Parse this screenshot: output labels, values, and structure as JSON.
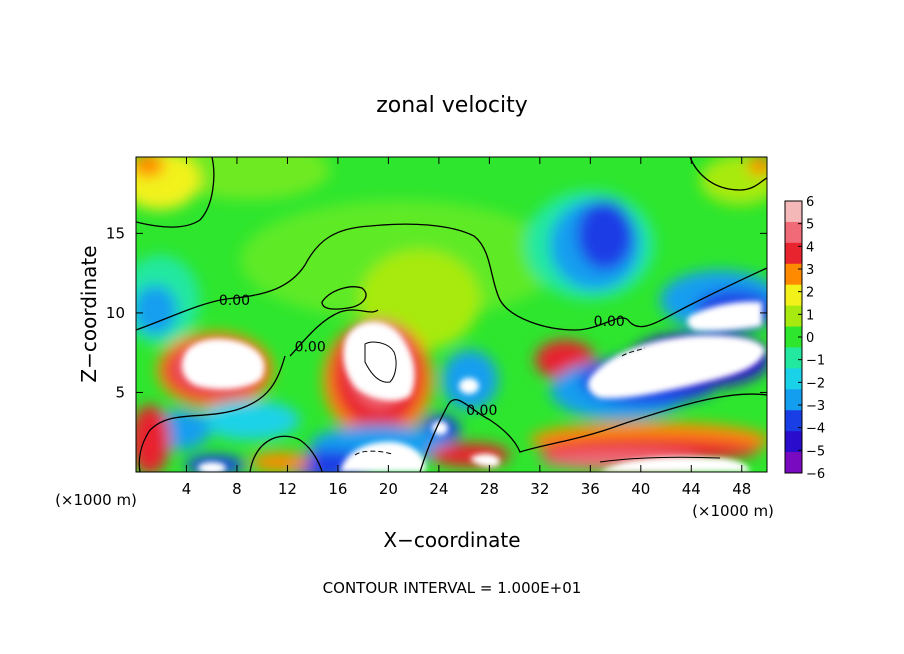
{
  "chart_data": {
    "type": "heatmap",
    "title": "zonal velocity",
    "xlabel": "X−coordinate",
    "ylabel": "Z−coordinate",
    "x_unit_left": "(×1000 m)",
    "x_unit_right": "(×1000 m)",
    "footnote": "CONTOUR INTERVAL = 1.000E+01",
    "xlim": [
      0,
      50
    ],
    "ylim": [
      0,
      19.8
    ],
    "x_ticks": [
      4,
      8,
      12,
      16,
      20,
      24,
      28,
      32,
      36,
      40,
      44,
      48
    ],
    "x_tick_labels": [
      "4",
      "8",
      "12",
      "16",
      "20",
      "24",
      "28",
      "32",
      "36",
      "40",
      "44",
      "48"
    ],
    "y_ticks": [
      5,
      10,
      15
    ],
    "y_tick_labels": [
      "5",
      "10",
      "15"
    ],
    "colorbar": {
      "min": -6,
      "max": 6,
      "ticks": [
        6,
        5,
        4,
        3,
        2,
        1,
        0,
        -1,
        -2,
        -3,
        -4,
        -5,
        -6
      ],
      "tick_labels": [
        "6",
        "5",
        "4",
        "3",
        "2",
        "1",
        "0",
        "−1",
        "−2",
        "−3",
        "−4",
        "−5",
        "−6"
      ],
      "colors": [
        {
          "v": 6,
          "c": "#f4b8b8"
        },
        {
          "v": 5,
          "c": "#f06a78"
        },
        {
          "v": 4,
          "c": "#e8242e"
        },
        {
          "v": 3,
          "c": "#ff8a00"
        },
        {
          "v": 2,
          "c": "#f2f21a"
        },
        {
          "v": 1,
          "c": "#a8ea10"
        },
        {
          "v": 0,
          "c": "#2ee62e"
        },
        {
          "v": -1,
          "c": "#22e8a0"
        },
        {
          "v": -2,
          "c": "#1ad2e8"
        },
        {
          "v": -3,
          "c": "#149ef0"
        },
        {
          "v": -4,
          "c": "#1a3ee6"
        },
        {
          "v": -5,
          "c": "#2a0ccc"
        },
        {
          "v": -6,
          "c": "#7a0ac0"
        }
      ],
      "out_of_range_color": "#ffffff"
    },
    "contour_labels": [
      {
        "text": "0.00",
        "x": 7.8,
        "y": 10.8
      },
      {
        "text": "0.00",
        "x": 13.8,
        "y": 7.9
      },
      {
        "text": "0.00",
        "x": 27.4,
        "y": 3.9
      },
      {
        "text": "0.00",
        "x": 37.5,
        "y": 9.5
      }
    ]
  }
}
